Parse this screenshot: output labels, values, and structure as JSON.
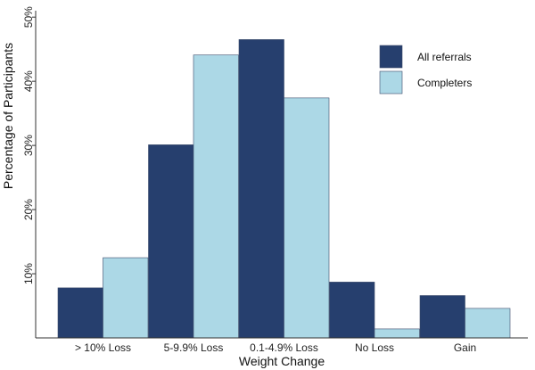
{
  "chart_data": {
    "type": "bar",
    "xlabel": "Weight Change",
    "ylabel": "Percentage of Participants",
    "categories": [
      "> 10% Loss",
      "5-9.9% Loss",
      "0.1-4.9% Loss",
      "No Loss",
      "Gain"
    ],
    "series": [
      {
        "name": "All referrals",
        "values": [
          7.8,
          30.1,
          46.5,
          8.7,
          6.6
        ],
        "color": "#263f6e"
      },
      {
        "name": "Completers",
        "values": [
          12.5,
          44.1,
          37.4,
          1.4,
          4.6
        ],
        "color": "#acd8e6"
      }
    ],
    "ylim": [
      0,
      51
    ],
    "yticks": [
      10,
      20,
      30,
      40,
      50
    ],
    "ytick_labels": [
      "10%",
      "20%",
      "30%",
      "40%",
      "50%"
    ],
    "grid": false,
    "legend_position": "top-right"
  }
}
